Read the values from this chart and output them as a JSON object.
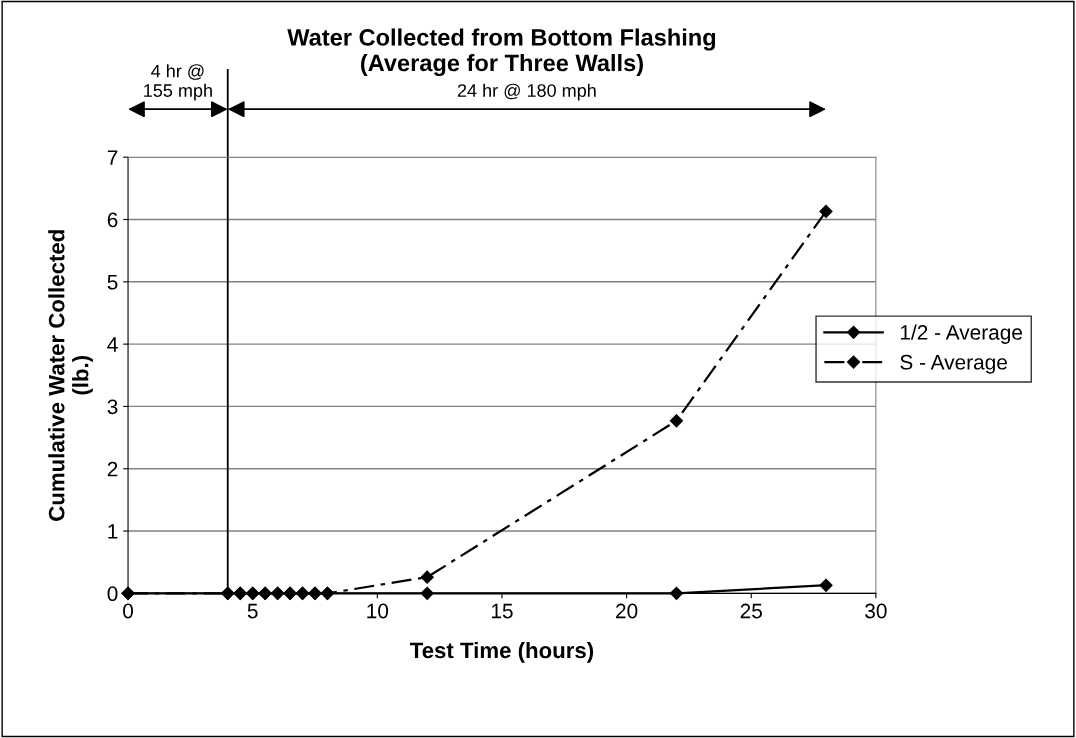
{
  "chart_data": {
    "type": "line",
    "title": "Water Collected from Bottom Flashing\n(Average for Three Walls)",
    "xlabel": "Test Time (hours)",
    "ylabel": "Cumulative Water Collected\n(lb.)",
    "annotations": [
      "4 hr @\n155 mph",
      "24 hr @ 180 mph"
    ],
    "x": [
      0,
      4,
      4.5,
      5,
      5.5,
      6,
      6.5,
      7,
      7.5,
      8,
      12,
      22,
      28
    ],
    "series": [
      {
        "name": "1/2 - Average",
        "color": "#000000",
        "line_style": "solid",
        "values": [
          0,
          0,
          0,
          0,
          0,
          0,
          0,
          0,
          0,
          0,
          0,
          0,
          0.13
        ]
      },
      {
        "name": "S - Average",
        "color": "#000000",
        "line_style": "dashed",
        "values": [
          0,
          0,
          0,
          0,
          0,
          0,
          0,
          0,
          0,
          0,
          0.26,
          2.77,
          6.13
        ]
      }
    ],
    "xlim": [
      0,
      30
    ],
    "xticks": [
      0,
      5,
      10,
      15,
      20,
      25,
      30
    ],
    "ylim": [
      0,
      7
    ],
    "yticks": [
      0,
      1,
      2,
      3,
      4,
      5,
      6,
      7
    ],
    "ref_lines": [
      {
        "axis": "x",
        "value": 4,
        "color": "#000000"
      }
    ],
    "grid": "y",
    "legend": "right",
    "marker": "diamond"
  }
}
